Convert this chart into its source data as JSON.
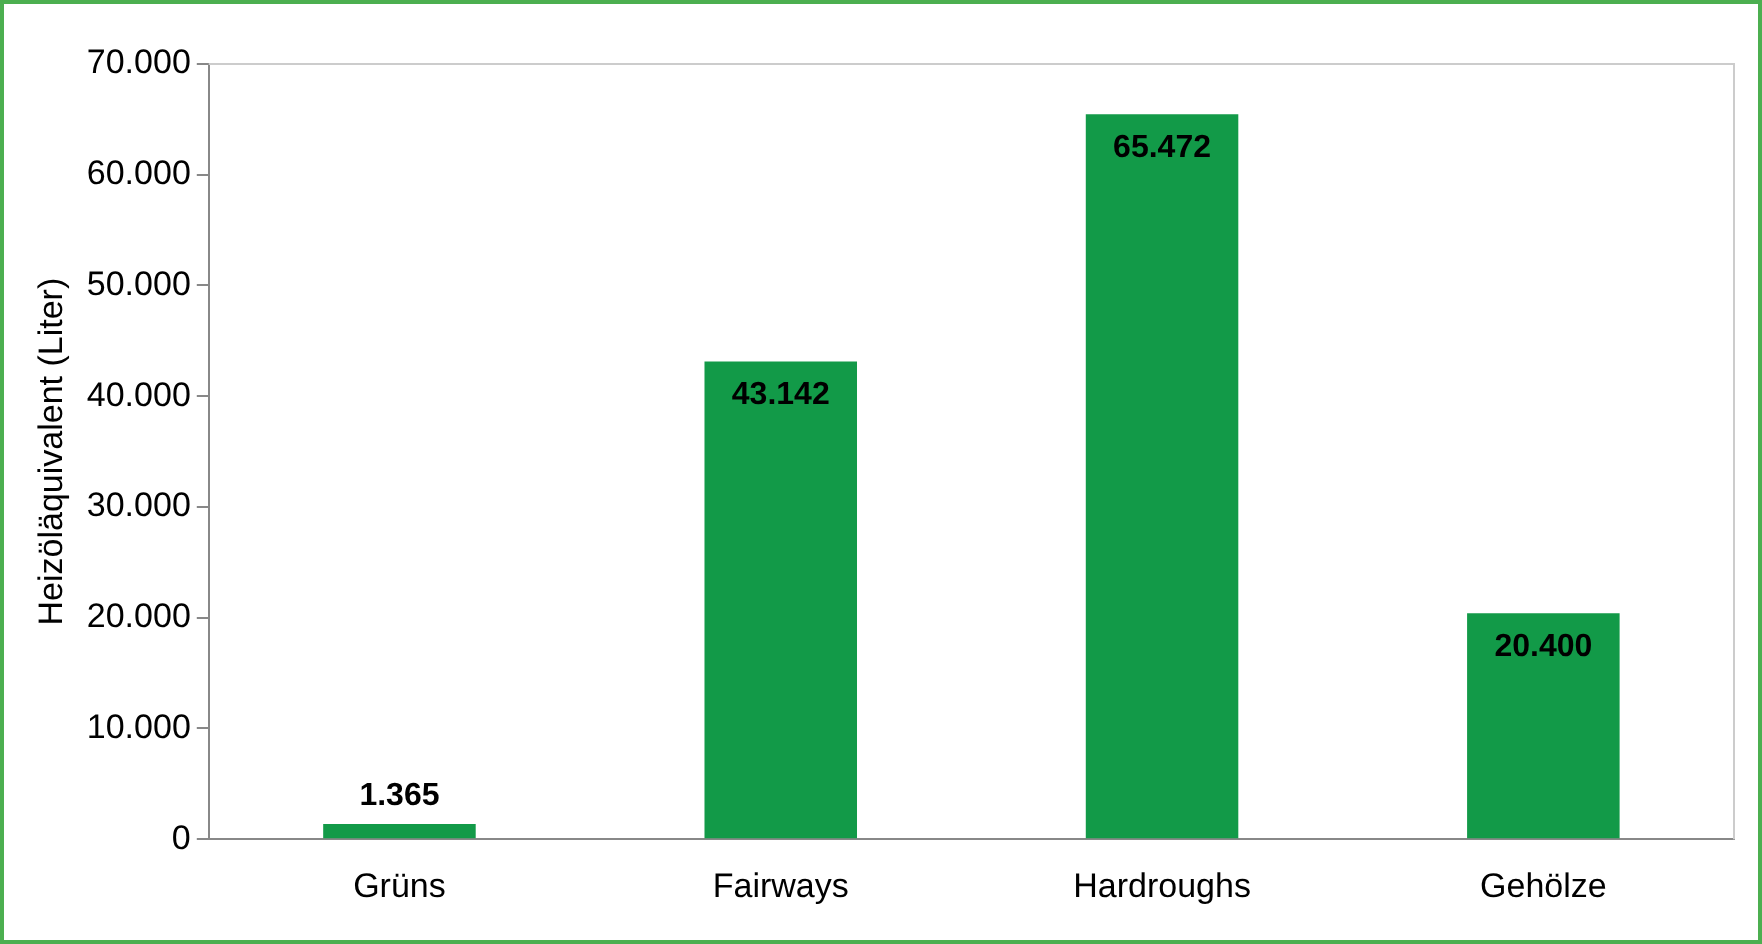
{
  "chart_data": {
    "type": "bar",
    "ylabel": "Heizöläquivalent (Liter)",
    "categories": [
      "Grüns",
      "Fairways",
      "Hardroughs",
      "Gehölze"
    ],
    "values": [
      1365,
      43142,
      65472,
      20400
    ],
    "value_labels": [
      "1.365",
      "43.142",
      "65.472",
      "20.400"
    ],
    "color": "#129a48",
    "ylim": [
      0,
      70000
    ],
    "yticks": [
      {
        "value": 0,
        "label": "0"
      },
      {
        "value": 10000,
        "label": "10.000"
      },
      {
        "value": 20000,
        "label": "20.000"
      },
      {
        "value": 30000,
        "label": "30.000"
      },
      {
        "value": 40000,
        "label": "40.000"
      },
      {
        "value": 50000,
        "label": "50.000"
      },
      {
        "value": 60000,
        "label": "60.000"
      },
      {
        "value": 70000,
        "label": "70.000"
      }
    ],
    "grid": false,
    "legend": false
  }
}
